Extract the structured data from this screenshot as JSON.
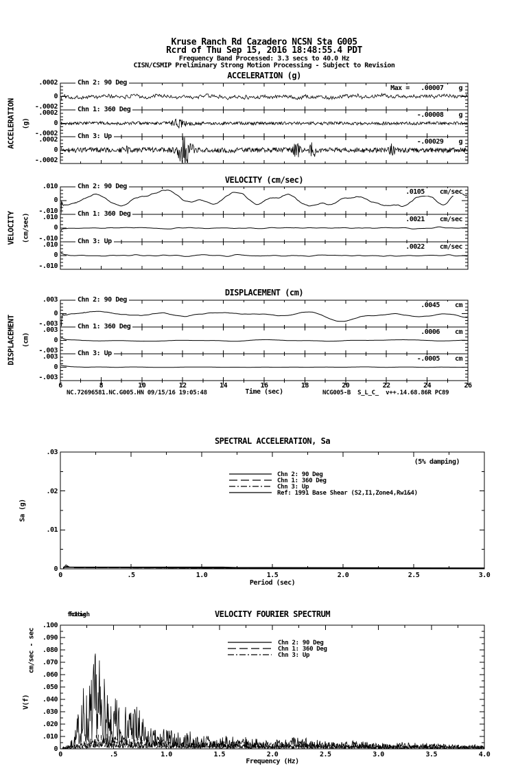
{
  "header": {
    "line1": "Kruse Ranch Rd Cazadero    NCSN Sta G005",
    "line2": "Rcrd of Thu Sep 15, 2016 18:48:55.4 PDT",
    "line3": "Frequency Band Processed: 3.3 secs to 40.0 Hz",
    "line4": "CISN/CSMIP Preliminary Strong Motion Processing - Subject to Revision"
  },
  "time_axis": {
    "label": "Time (sec)",
    "tick_labels": [
      "6",
      "8",
      "10",
      "12",
      "14",
      "16",
      "18",
      "20",
      "22",
      "24",
      "26"
    ],
    "range_sec": [
      6,
      26
    ],
    "footer_left": "NC.72696581.NC.G005.HN 09/15/16 19:05:48",
    "footer_right": "NCG005-B  S_L_C_  v++.14.68.86R PC89"
  },
  "chart_data": [
    {
      "id": "acceleration",
      "type": "line",
      "title": "ACCELERATION (g)",
      "side_label": "ACCELERATION",
      "side_unit": "(g)",
      "units": "g",
      "x_range_sec": [
        6,
        26
      ],
      "ylim": [
        -0.0002,
        0.0002
      ],
      "ytick_labels": [
        ".0002",
        "0",
        "-.0002"
      ],
      "series": [
        {
          "name": "Chn 2: 90 Deg",
          "annotation": "Max =   .00007    g",
          "peak_value": 7e-05,
          "texture": "fuzz",
          "smooth": 2,
          "wander": 0.9,
          "seed": 101,
          "bursts": []
        },
        {
          "name": "Chn 1: 360 Deg",
          "annotation": "-.00008    g",
          "peak_value": -8e-05,
          "texture": "fuzz",
          "smooth": 1,
          "wander": 0.25,
          "seed": 202,
          "bursts": [
            {
              "t": 11.9,
              "w": 0.4,
              "gain": 2.6
            }
          ]
        },
        {
          "name": "Chn 3: Up",
          "annotation": "-.00029    g",
          "peak_value": -0.00029,
          "texture": "fuzz",
          "smooth": 1,
          "wander": 0.18,
          "seed": 303,
          "bursts": [
            {
              "t": 12.1,
              "w": 0.35,
              "gain": 6.0
            },
            {
              "t": 9.2,
              "w": 0.15,
              "gain": 1.8
            },
            {
              "t": 17.6,
              "w": 0.15,
              "gain": 3.0
            },
            {
              "t": 18.4,
              "w": 0.15,
              "gain": 2.6
            },
            {
              "t": 22.3,
              "w": 0.12,
              "gain": 2.2
            }
          ]
        }
      ]
    },
    {
      "id": "velocity",
      "type": "line",
      "title": "VELOCITY (cm/sec)",
      "side_label": "VELOCITY",
      "side_unit": "(cm/sec)",
      "units": "cm/sec",
      "x_range_sec": [
        6,
        26
      ],
      "ylim": [
        -0.01,
        0.01
      ],
      "ytick_labels": [
        ".010",
        "0",
        "-.010"
      ],
      "series": [
        {
          "name": "Chn 2: 90 Deg",
          "annotation": ".0105    cm/sec",
          "peak_value": 0.0105,
          "texture": "wave",
          "smooth": 28,
          "seed": 404,
          "bursts": []
        },
        {
          "name": "Chn 1: 360 Deg",
          "annotation": ".0021    cm/sec",
          "peak_value": 0.0021,
          "texture": "wave",
          "smooth": 14,
          "seed": 505,
          "bursts": []
        },
        {
          "name": "Chn 3: Up",
          "annotation": ".0022    cm/sec",
          "peak_value": 0.0022,
          "texture": "wave",
          "smooth": 14,
          "seed": 606,
          "bursts": []
        }
      ]
    },
    {
      "id": "displacement",
      "type": "line",
      "title": "DISPLACEMENT (cm)",
      "side_label": "DISPLACEMENT",
      "side_unit": "(cm)",
      "units": "cm",
      "x_range_sec": [
        6,
        26
      ],
      "ylim": [
        -0.003,
        0.003
      ],
      "ytick_labels": [
        ".003",
        "0",
        "-.003"
      ],
      "series": [
        {
          "name": "Chn 2: 90 Deg",
          "annotation": ".0045    cm",
          "peak_value": 0.0045,
          "texture": "wave",
          "smooth": 45,
          "seed": 707,
          "bursts": []
        },
        {
          "name": "Chn 1: 360 Deg",
          "annotation": ".0006    cm",
          "peak_value": 0.0006,
          "texture": "wave",
          "smooth": 38,
          "seed": 808,
          "bursts": []
        },
        {
          "name": "Chn 3: Up",
          "annotation": "-.0005    cm",
          "peak_value": -0.0005,
          "texture": "wave",
          "smooth": 38,
          "seed": 909,
          "bursts": []
        }
      ]
    },
    {
      "id": "spectral_acceleration",
      "type": "line",
      "title": "SPECTRAL ACCELERATION, Sa",
      "xlabel": "Period (sec)",
      "ylabel": "Sa (g)",
      "xlim": [
        0,
        3.0
      ],
      "ylim": [
        0,
        0.03
      ],
      "xtick_labels": [
        "0",
        ".5",
        "1.0",
        "1.5",
        "2.0",
        "2.5",
        "3.0"
      ],
      "xtick_values": [
        0,
        0.5,
        1.0,
        1.5,
        2.0,
        2.5,
        3.0
      ],
      "ytick_labels": [
        ".03",
        ".02",
        ".01",
        "0"
      ],
      "ytick_values": [
        0.03,
        0.02,
        0.01,
        0
      ],
      "damping_note": "(5% damping)",
      "legend": [
        {
          "label": "Chn 2: 90 Deg",
          "style": "solid"
        },
        {
          "label": "Chn 1: 360 Deg",
          "style": "longdash"
        },
        {
          "label": "Chn 3: Up",
          "style": "dashdot"
        },
        {
          "label": "Ref: 1991 Base Shear (S2,I1,Zone4,Rw1&4)",
          "style": "solid"
        }
      ],
      "curves": [
        {
          "name": "Chn 2: 90 Deg",
          "style": "solid",
          "points": [
            [
              0.02,
              0.0002
            ],
            [
              0.04,
              0.001
            ],
            [
              0.06,
              0.0005
            ],
            [
              0.1,
              0.0003
            ],
            [
              0.5,
              0.0003
            ],
            [
              1.15,
              0.0002
            ],
            [
              3.0,
              0.0001
            ]
          ]
        },
        {
          "name": "Chn 1: 360 Deg",
          "style": "longdash",
          "points": [
            [
              0.02,
              0.0001
            ],
            [
              0.04,
              0.0006
            ],
            [
              0.08,
              0.0003
            ],
            [
              1.15,
              0.0002
            ],
            [
              3.0,
              0.0001
            ]
          ]
        },
        {
          "name": "Chn 3: Up",
          "style": "dashdot",
          "points": [
            [
              0.02,
              0.0002
            ],
            [
              0.05,
              0.0007
            ],
            [
              0.09,
              0.0003
            ],
            [
              1.0,
              0.0002
            ],
            [
              3.0,
              0.0001
            ]
          ]
        },
        {
          "name": "Ref: 1991 Base Shear (S2,I1,Zone4,Rw1&4)",
          "style": "solid",
          "points": [
            [
              0.02,
              0.0004
            ],
            [
              1.15,
              0.0004
            ],
            [
              1.25,
              0.0003
            ],
            [
              3.0,
              0.0002
            ]
          ]
        }
      ]
    },
    {
      "id": "velocity_fourier_spectrum",
      "type": "line",
      "title": "VELOCITY FOURIER SPECTRUM",
      "xlabel": "Frequency (Hz)",
      "ylabel_upper": "cm/sec - sec",
      "ylabel_lower": "V(f)",
      "xlim": [
        0,
        4.0
      ],
      "ylim": [
        0,
        0.1
      ],
      "xtick_labels": [
        "0",
        ".5",
        "1.0",
        "1.5",
        "2.0",
        "2.5",
        "3.0",
        "3.5",
        "4.0"
      ],
      "xtick_values": [
        0,
        0.5,
        1.0,
        1.5,
        2.0,
        2.5,
        3.0,
        3.5,
        4.0
      ],
      "ytick_labels": [
        ".100",
        ".090",
        ".080",
        ".070",
        ".060",
        ".050",
        ".040",
        ".030",
        ".020",
        ".010",
        "0"
      ],
      "ytick_values": [
        0.1,
        0.09,
        0.08,
        0.07,
        0.06,
        0.05,
        0.04,
        0.03,
        0.02,
        0.01,
        0
      ],
      "fc_markers": [
        "fcLow",
        "fcHigh"
      ],
      "legend": [
        {
          "label": "Chn 2: 90 Deg",
          "style": "solid"
        },
        {
          "label": "Chn 1: 360 Deg",
          "style": "longdash"
        },
        {
          "label": "Chn 3: Up",
          "style": "dashdot"
        }
      ],
      "spectra": [
        {
          "name": "Chn 1: 360 Deg",
          "style": "longdash",
          "seed": 8,
          "peak": 0.012,
          "envelope": [
            [
              0.02,
              0.001
            ],
            [
              0.2,
              0.004
            ],
            [
              0.3,
              0.008
            ],
            [
              0.4,
              0.012
            ],
            [
              0.5,
              0.008
            ],
            [
              0.7,
              0.006
            ],
            [
              1.0,
              0.005
            ],
            [
              1.5,
              0.004
            ],
            [
              2.0,
              0.003
            ],
            [
              3.0,
              0.003
            ],
            [
              4.0,
              0.002
            ]
          ]
        },
        {
          "name": "Chn 3: Up",
          "style": "dashdot",
          "seed": 9,
          "peak": 0.01,
          "envelope": [
            [
              0.02,
              0.001
            ],
            [
              0.3,
              0.006
            ],
            [
              0.5,
              0.008
            ],
            [
              0.8,
              0.006
            ],
            [
              1.2,
              0.005
            ],
            [
              2.0,
              0.004
            ],
            [
              3.0,
              0.003
            ],
            [
              4.0,
              0.002
            ]
          ]
        },
        {
          "name": "Chn 2: 90 Deg",
          "style": "solid",
          "seed": 7,
          "peak": 0.077,
          "envelope": [
            [
              0.02,
              0.001
            ],
            [
              0.1,
              0.006
            ],
            [
              0.15,
              0.018
            ],
            [
              0.2,
              0.05
            ],
            [
              0.25,
              0.045
            ],
            [
              0.3,
              0.06
            ],
            [
              0.34,
              0.077
            ],
            [
              0.38,
              0.062
            ],
            [
              0.42,
              0.055
            ],
            [
              0.46,
              0.028
            ],
            [
              0.5,
              0.035
            ],
            [
              0.55,
              0.04
            ],
            [
              0.6,
              0.028
            ],
            [
              0.65,
              0.038
            ],
            [
              0.7,
              0.04
            ],
            [
              0.75,
              0.028
            ],
            [
              0.8,
              0.018
            ],
            [
              0.9,
              0.014
            ],
            [
              1.0,
              0.016
            ],
            [
              1.1,
              0.012
            ],
            [
              1.2,
              0.014
            ],
            [
              1.3,
              0.009
            ],
            [
              1.4,
              0.012
            ],
            [
              1.5,
              0.008
            ],
            [
              1.6,
              0.01
            ],
            [
              1.8,
              0.008
            ],
            [
              2.0,
              0.006
            ],
            [
              2.2,
              0.009
            ],
            [
              2.4,
              0.007
            ],
            [
              2.6,
              0.005
            ],
            [
              2.8,
              0.006
            ],
            [
              3.0,
              0.004
            ],
            [
              3.2,
              0.005
            ],
            [
              3.5,
              0.004
            ],
            [
              3.8,
              0.003
            ],
            [
              4.0,
              0.003
            ]
          ]
        }
      ]
    }
  ]
}
